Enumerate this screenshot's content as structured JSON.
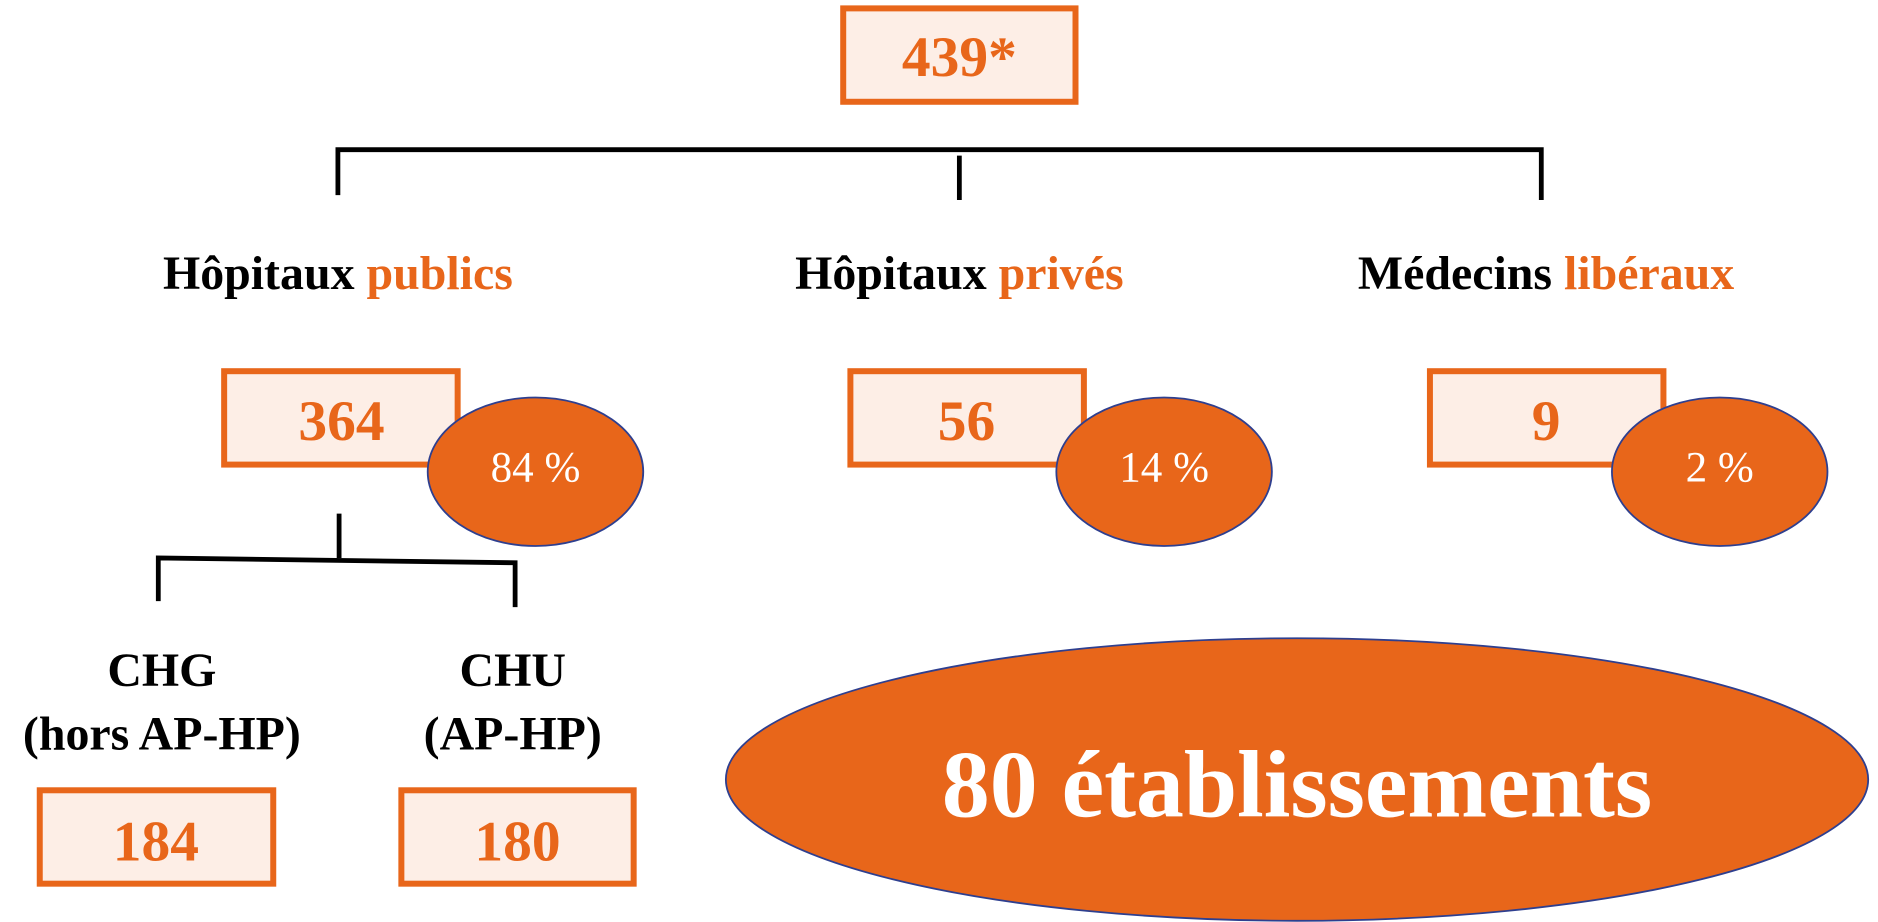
{
  "root": {
    "count": "439*"
  },
  "branches": [
    {
      "label_black": "Hôpitaux",
      "label_orange": "publics",
      "count": "364",
      "share": "84 %"
    },
    {
      "label_black": "Hôpitaux",
      "label_orange": "privés",
      "count": "56",
      "share": "14 %"
    },
    {
      "label_black": "Médecins",
      "label_orange": "libéraux",
      "count": "9",
      "share": "2 %"
    }
  ],
  "sub_branches": [
    {
      "label_line1": "CHG",
      "label_line2": "(hors AP-HP)",
      "count": "184"
    },
    {
      "label_line1": "CHU",
      "label_line2": "(AP-HP)",
      "count": "180"
    }
  ],
  "highlight": "80 établissements"
}
